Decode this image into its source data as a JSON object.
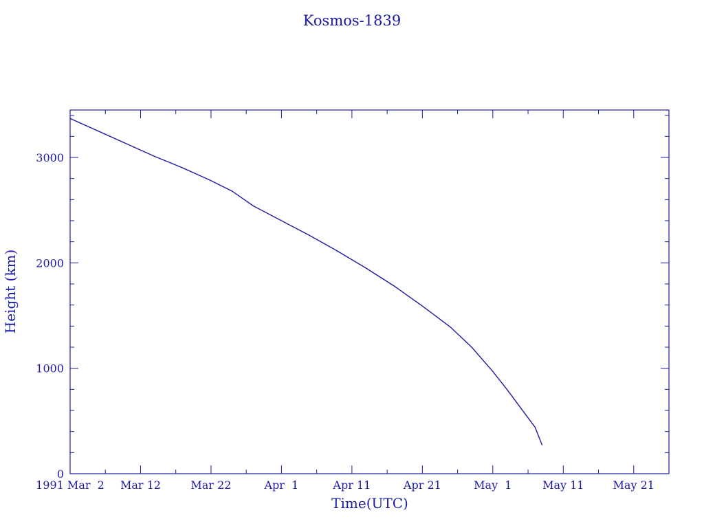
{
  "chart_data": {
    "type": "line",
    "title": "Kosmos-1839",
    "xlabel": "Time(UTC)",
    "ylabel": "Height (km)",
    "x_tick_labels": [
      "1991 Mar  2",
      "Mar 12",
      "Mar 22",
      "Apr  1",
      "Apr 11",
      "Apr 21",
      "May  1",
      "May 11",
      "May 21"
    ],
    "y_tick_labels": [
      "0",
      "1000",
      "2000",
      "3000"
    ],
    "xlim": [
      "1991-03-02",
      "1991-05-26"
    ],
    "ylim": [
      0,
      3450
    ],
    "y_ticks": [
      0,
      1000,
      2000,
      3000
    ],
    "grid": false,
    "series": [
      {
        "x": [
          "1991-03-02",
          "1991-03-06",
          "1991-03-10",
          "1991-03-14",
          "1991-03-18",
          "1991-03-22",
          "1991-03-25",
          "1991-03-28",
          "1991-04-01",
          "1991-04-05",
          "1991-04-09",
          "1991-04-13",
          "1991-04-17",
          "1991-04-21",
          "1991-04-25",
          "1991-04-28",
          "1991-05-01",
          "1991-05-03",
          "1991-05-05",
          "1991-05-07",
          "1991-05-08"
        ],
        "y": [
          3370,
          3250,
          3130,
          3010,
          2900,
          2780,
          2680,
          2540,
          2400,
          2260,
          2110,
          1950,
          1780,
          1590,
          1390,
          1200,
          970,
          800,
          620,
          440,
          270
        ]
      }
    ]
  },
  "colors": {
    "axis": "#1a1aa6",
    "line": "#1a1aa6",
    "text": "#1a1aa6"
  }
}
